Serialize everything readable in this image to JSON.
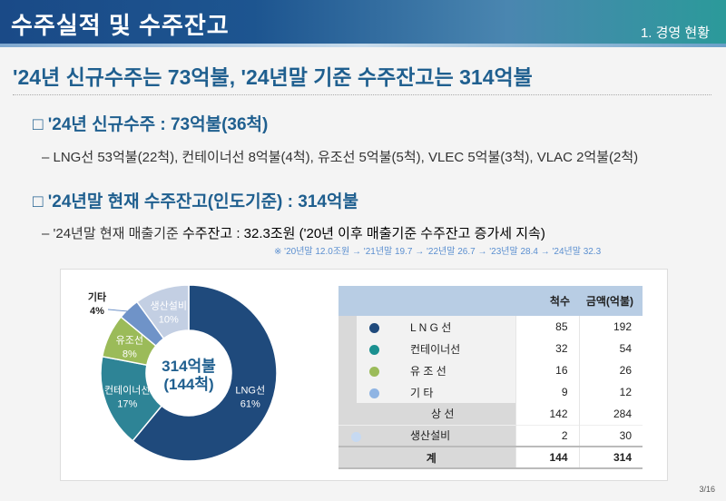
{
  "header": {
    "title": "수주실적 및 수주잔고",
    "section": "1. 경영 현황"
  },
  "headline": "'24년 신규수주는 73억불, '24년말 기준 수주잔고는 314억불",
  "bullet1": {
    "title": "□ '24년 신규수주 : 73억불(36척)",
    "detail": "– LNG선 53억불(22척), 컨테이너선 8억불(4척), 유조선 5억불(5척), VLEC 5억불(3척), VLAC 2억불(2척)"
  },
  "bullet2": {
    "title": "□ '24년말 현재 수주잔고(인도기준) : 314억불",
    "detail_prefix": "– '24년말 현재 매출기준 ",
    "detail_main": "수주잔고 : 32.3조원 ('20년 이후 매출기준 수주잔고 증가세 지속)",
    "note": "※ '20년말 12.0조원 → '21년말 19.7 → '22년말 26.7 → '23년말 28.4 → '24년말 32.3"
  },
  "chart_data": {
    "type": "pie",
    "center_label": [
      "314억불",
      "(144척)"
    ],
    "slices": [
      {
        "label": "LNG선",
        "value": 61,
        "pct": "61%",
        "color": "#1f4a7c"
      },
      {
        "label": "컨테이너선",
        "value": 17,
        "pct": "17%",
        "color": "#2e8496"
      },
      {
        "label": "유조선",
        "value": 8,
        "pct": "8%",
        "color": "#9bbb59"
      },
      {
        "label": "기타",
        "value": 4,
        "pct": "4%",
        "color": "#6f93c8"
      },
      {
        "label": "생산설비",
        "value": 10,
        "pct": "10%",
        "color": "#c3cfe3"
      }
    ]
  },
  "table": {
    "headers": [
      "척수",
      "금액(억불)"
    ],
    "rows": [
      {
        "label": "L N G 선",
        "ships": "85",
        "amount": "192",
        "color": "#1f4a7c"
      },
      {
        "label": "컨테이너선",
        "ships": "32",
        "amount": "54",
        "color": "#1a9090"
      },
      {
        "label": "유   조   선",
        "ships": "16",
        "amount": "26",
        "color": "#9bbb59"
      },
      {
        "label": "기          타",
        "ships": "9",
        "amount": "12",
        "color": "#8fb4e3"
      }
    ],
    "subtotal": {
      "label": "상          선",
      "ships": "142",
      "amount": "284"
    },
    "equipment": {
      "label": "생산설비",
      "ships": "2",
      "amount": "30",
      "color": "#c6d9f1"
    },
    "total": {
      "label": "계",
      "ships": "144",
      "amount": "314"
    }
  },
  "page": "3/16"
}
